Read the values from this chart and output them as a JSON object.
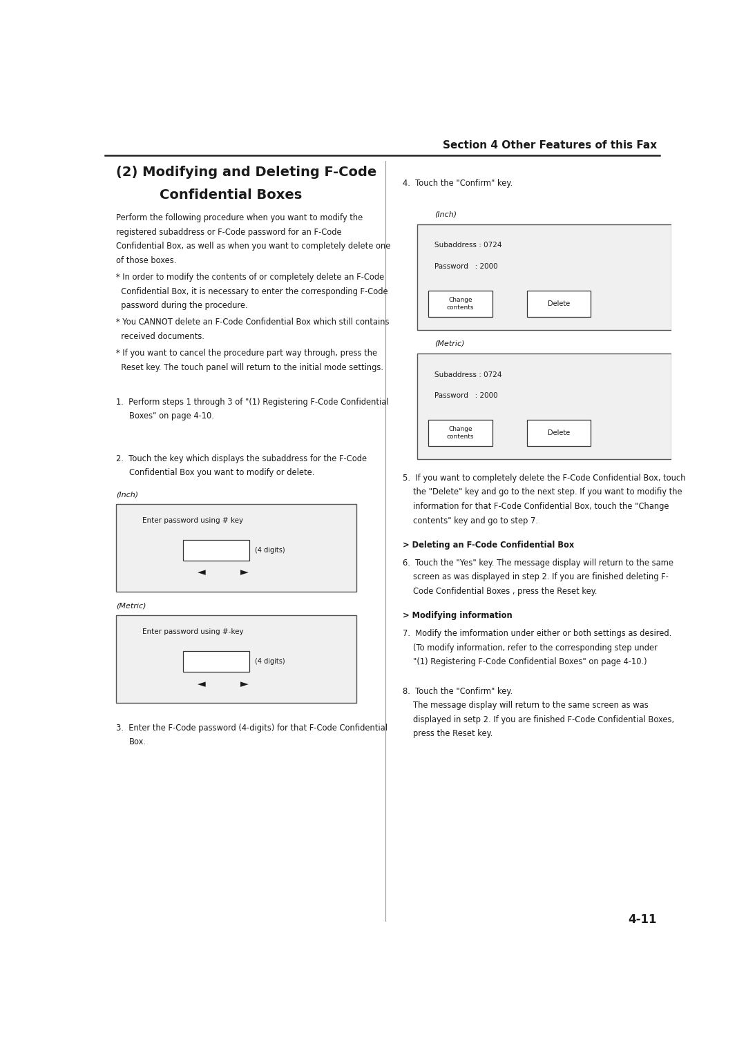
{
  "bg_color": "#ffffff",
  "text_color": "#1a1a1a",
  "header_text": "Section 4 Other Features of this Fax",
  "page_number": "4-11",
  "title_line1": "(2) Modifying and Deleting F-Code",
  "title_line2": "Confidential Boxes",
  "body_font_size": 8.3,
  "title_font_size": 14.0,
  "header_font_size": 11.0
}
